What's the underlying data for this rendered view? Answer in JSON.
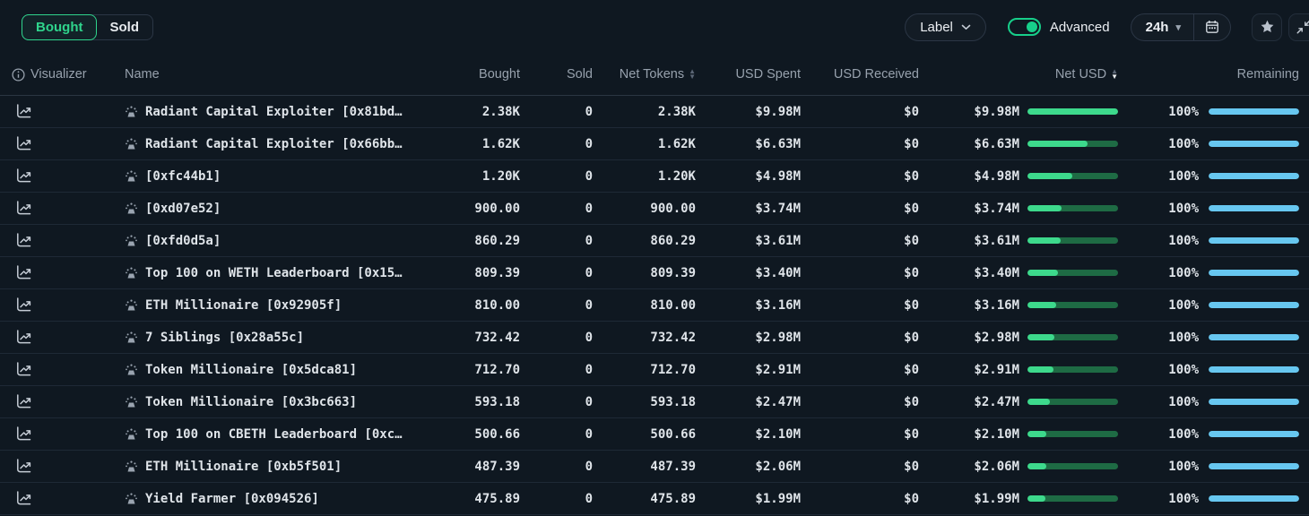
{
  "toolbar": {
    "tabs": [
      {
        "label": "Bought",
        "active": true
      },
      {
        "label": "Sold",
        "active": false
      }
    ],
    "label_dropdown": {
      "label": "Label"
    },
    "advanced_toggle": {
      "label": "Advanced",
      "on": true
    },
    "timeframe": {
      "label": "24h"
    },
    "icons": [
      "calendar-icon",
      "star-icon",
      "collapse-icon"
    ]
  },
  "table": {
    "header": {
      "visualizer": "Visualizer",
      "name": "Name",
      "bought": "Bought",
      "sold": "Sold",
      "net_tokens": "Net Tokens",
      "usd_spent": "USD Spent",
      "usd_received": "USD Received",
      "net_usd": "Net USD",
      "remaining": "Remaining"
    },
    "sort": {
      "column": "Net USD",
      "direction": "desc"
    },
    "rows": [
      {
        "name": "Radiant Capital Exploiter [0x81bd…",
        "bought": "2.38K",
        "sold": "0",
        "net_tokens": "2.38K",
        "usd_spent": "$9.98M",
        "usd_received": "$0",
        "net_usd": "$9.98M",
        "net_usd_pct": 100,
        "remaining": "100%",
        "remaining_pct": 100
      },
      {
        "name": "Radiant Capital Exploiter [0x66bb…",
        "bought": "1.62K",
        "sold": "0",
        "net_tokens": "1.62K",
        "usd_spent": "$6.63M",
        "usd_received": "$0",
        "net_usd": "$6.63M",
        "net_usd_pct": 66.4,
        "remaining": "100%",
        "remaining_pct": 100
      },
      {
        "name": "[0xfc44b1]",
        "bought": "1.20K",
        "sold": "0",
        "net_tokens": "1.20K",
        "usd_spent": "$4.98M",
        "usd_received": "$0",
        "net_usd": "$4.98M",
        "net_usd_pct": 49.9,
        "remaining": "100%",
        "remaining_pct": 100
      },
      {
        "name": "[0xd07e52]",
        "bought": "900.00",
        "sold": "0",
        "net_tokens": "900.00",
        "usd_spent": "$3.74M",
        "usd_received": "$0",
        "net_usd": "$3.74M",
        "net_usd_pct": 37.5,
        "remaining": "100%",
        "remaining_pct": 100
      },
      {
        "name": "[0xfd0d5a]",
        "bought": "860.29",
        "sold": "0",
        "net_tokens": "860.29",
        "usd_spent": "$3.61M",
        "usd_received": "$0",
        "net_usd": "$3.61M",
        "net_usd_pct": 36.2,
        "remaining": "100%",
        "remaining_pct": 100
      },
      {
        "name": "Top 100 on WETH Leaderboard [0x15…",
        "bought": "809.39",
        "sold": "0",
        "net_tokens": "809.39",
        "usd_spent": "$3.40M",
        "usd_received": "$0",
        "net_usd": "$3.40M",
        "net_usd_pct": 34.1,
        "remaining": "100%",
        "remaining_pct": 100
      },
      {
        "name": "ETH Millionaire [0x92905f]",
        "bought": "810.00",
        "sold": "0",
        "net_tokens": "810.00",
        "usd_spent": "$3.16M",
        "usd_received": "$0",
        "net_usd": "$3.16M",
        "net_usd_pct": 31.7,
        "remaining": "100%",
        "remaining_pct": 100
      },
      {
        "name": "7 Siblings [0x28a55c]",
        "icon": "fountain-emoji",
        "bought": "732.42",
        "sold": "0",
        "net_tokens": "732.42",
        "usd_spent": "$2.98M",
        "usd_received": "$0",
        "net_usd": "$2.98M",
        "net_usd_pct": 29.9,
        "remaining": "100%",
        "remaining_pct": 100
      },
      {
        "name": "Token Millionaire [0x5dca81]",
        "bought": "712.70",
        "sold": "0",
        "net_tokens": "712.70",
        "usd_spent": "$2.91M",
        "usd_received": "$0",
        "net_usd": "$2.91M",
        "net_usd_pct": 29.2,
        "remaining": "100%",
        "remaining_pct": 100
      },
      {
        "name": "Token Millionaire [0x3bc663]",
        "bought": "593.18",
        "sold": "0",
        "net_tokens": "593.18",
        "usd_spent": "$2.47M",
        "usd_received": "$0",
        "net_usd": "$2.47M",
        "net_usd_pct": 24.7,
        "remaining": "100%",
        "remaining_pct": 100
      },
      {
        "name": "Top 100 on CBETH Leaderboard [0xc…",
        "bought": "500.66",
        "sold": "0",
        "net_tokens": "500.66",
        "usd_spent": "$2.10M",
        "usd_received": "$0",
        "net_usd": "$2.10M",
        "net_usd_pct": 21.0,
        "remaining": "100%",
        "remaining_pct": 100
      },
      {
        "name": "ETH Millionaire [0xb5f501]",
        "bought": "487.39",
        "sold": "0",
        "net_tokens": "487.39",
        "usd_spent": "$2.06M",
        "usd_received": "$0",
        "net_usd": "$2.06M",
        "net_usd_pct": 20.6,
        "remaining": "100%",
        "remaining_pct": 100
      },
      {
        "name": "Yield Farmer [0x094526]",
        "bought": "475.89",
        "sold": "0",
        "net_tokens": "475.89",
        "usd_spent": "$1.99M",
        "usd_received": "$0",
        "net_usd": "$1.99M",
        "net_usd_pct": 19.9,
        "remaining": "100%",
        "remaining_pct": 100
      }
    ]
  },
  "colors": {
    "background": "#0f1821",
    "accent_green": "#2fd48c",
    "bar_green": "#3dd98c",
    "bar_green_track": "#1e6b44",
    "bar_blue": "#67c7f0",
    "header_text": "#97a1ad",
    "text": "#e6eaee",
    "divider": "#1e2936"
  }
}
